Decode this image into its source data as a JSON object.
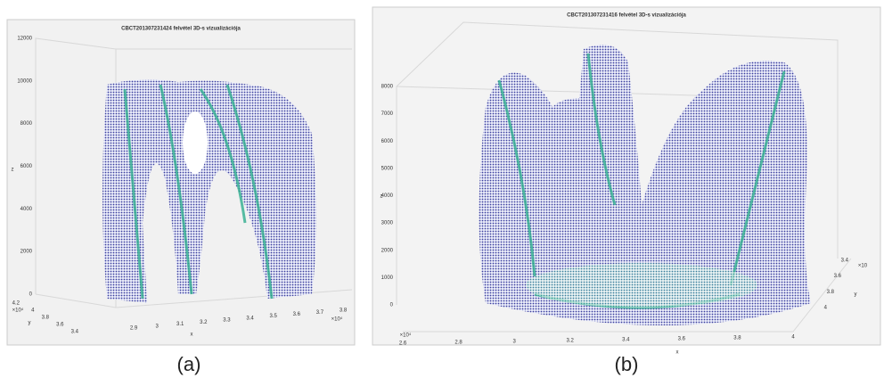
{
  "panels": [
    {
      "title": "CBCT201307231424 felvétel 3D-s vizualizációja",
      "caption": "(a)",
      "z_label": "z",
      "x_label": "x",
      "y_label": "y",
      "z_ticks": [
        "0",
        "2000",
        "4000",
        "6000",
        "8000",
        "10000",
        "12000"
      ],
      "x_ticks": [
        "2.9",
        "3",
        "3.1",
        "3.2",
        "3.3",
        "3.4",
        "3.5",
        "3.6",
        "3.7",
        "3.8"
      ],
      "x_exponent": "×10⁴",
      "y_ticks": [
        "4.2",
        "4",
        "3.8",
        "3.6",
        "3.4"
      ],
      "y_exponent": "×10⁴"
    },
    {
      "title": "CBCT201307231416 felvétel 3D-s vizualizációja",
      "caption": "(b)",
      "z_label": "z",
      "x_label": "x",
      "y_label": "y",
      "z_ticks": [
        "0",
        "1000",
        "2000",
        "3000",
        "4000",
        "5000",
        "6000",
        "7000",
        "8000"
      ],
      "x_ticks": [
        "2.6",
        "2.8",
        "3",
        "3.2",
        "3.4",
        "3.6",
        "3.8",
        "4"
      ],
      "x_exponent": "×10⁴",
      "y_ticks": [
        "3.4",
        "3.6",
        "3.8",
        "4"
      ],
      "y_exponent": "×10"
    }
  ]
}
